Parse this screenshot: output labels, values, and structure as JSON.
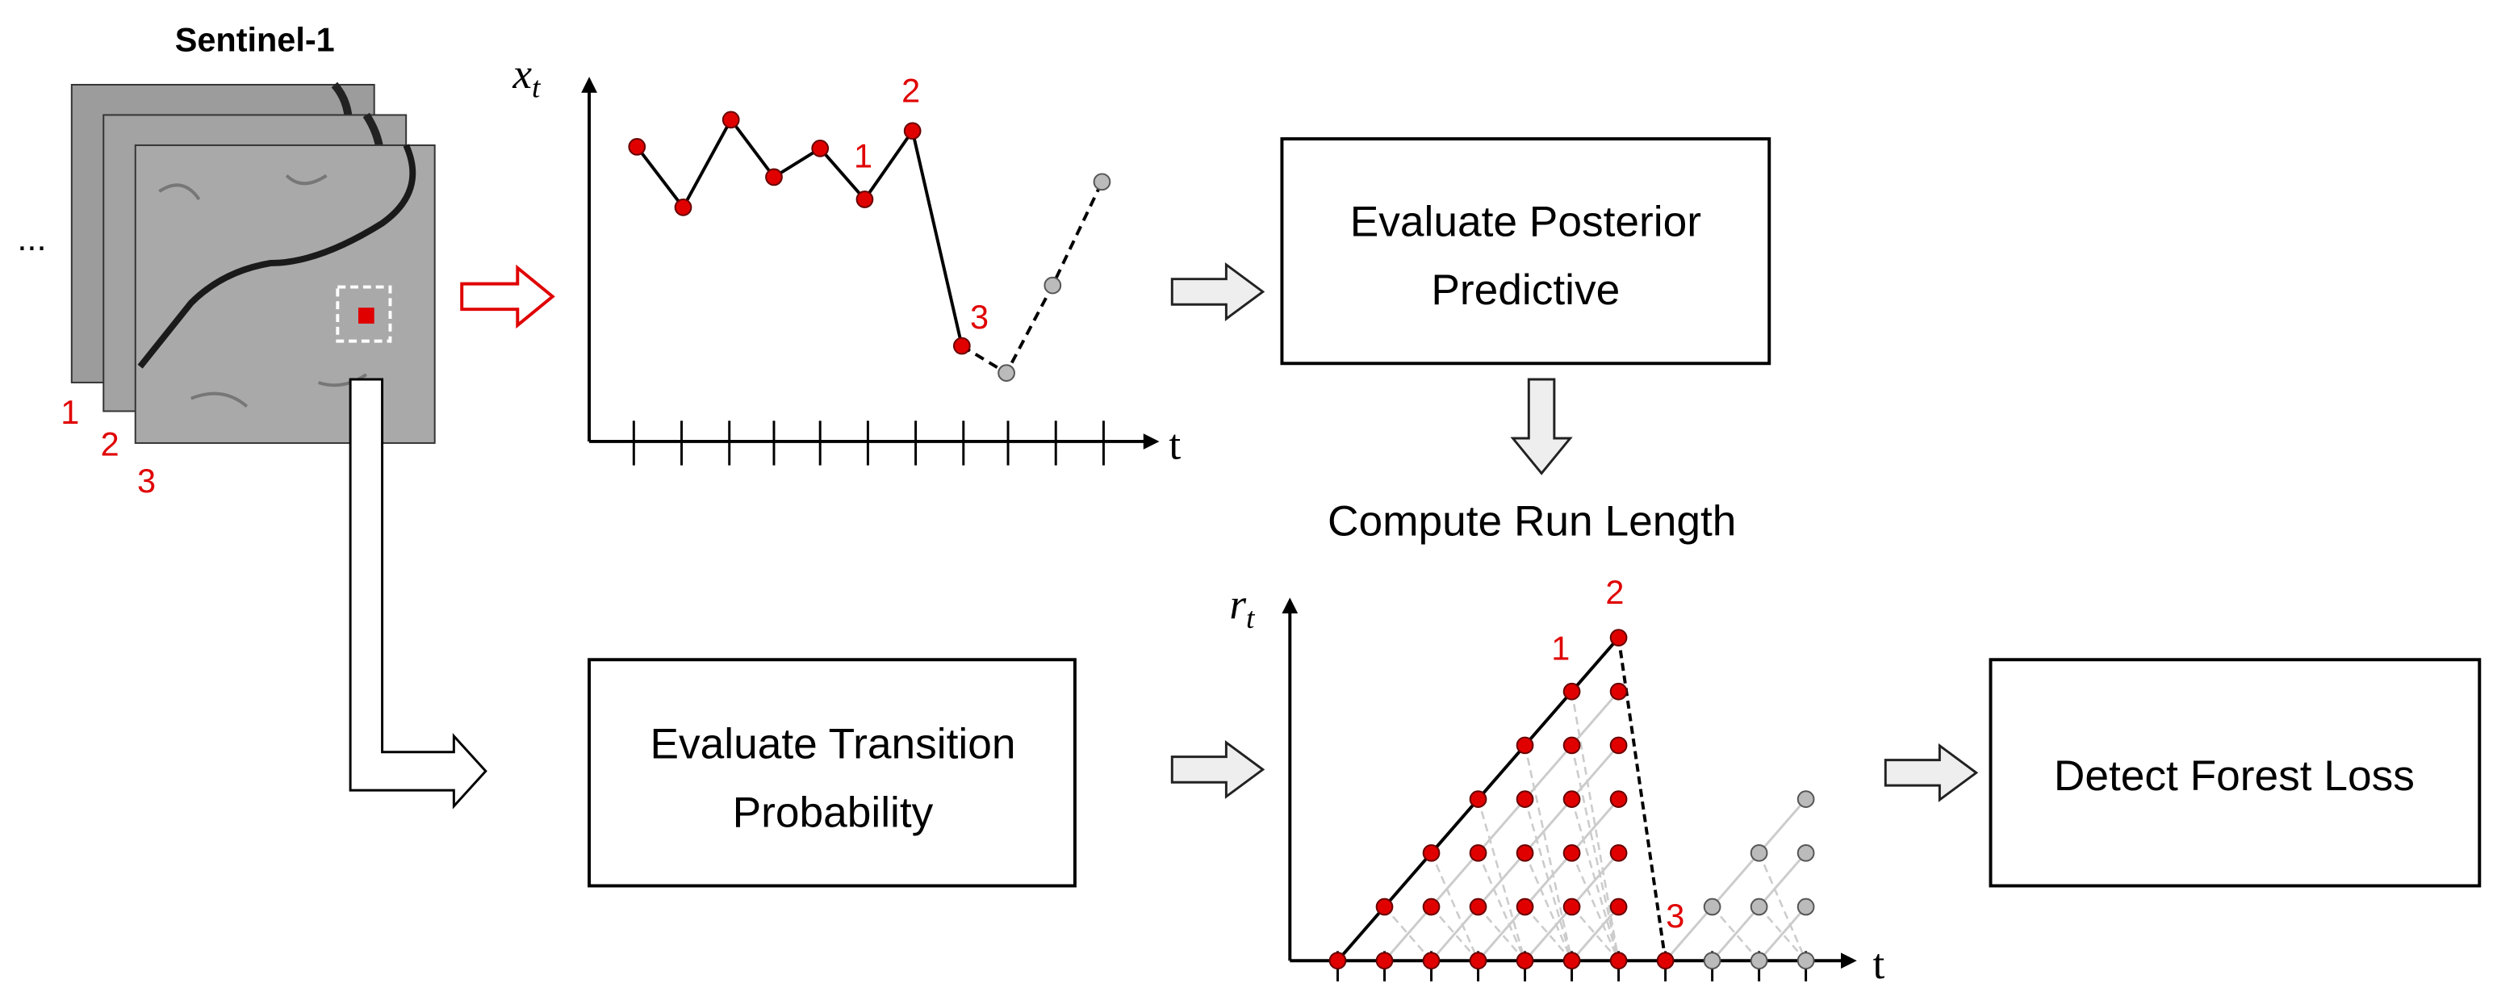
{
  "satellite": {
    "title": "Sentinel-1",
    "ellipsis": "...",
    "frame_labels": [
      "1",
      "2",
      "3"
    ]
  },
  "series_plot": {
    "y_symbol": "x",
    "y_subscript": "t",
    "x_label": "t",
    "annotations": [
      "2",
      "1",
      "3"
    ]
  },
  "posterior_box": [
    "Evaluate Posterior",
    "Predictive"
  ],
  "run_length_caption": "Compute Run Length",
  "run_length_plot": {
    "y_symbol": "r",
    "y_subscript": "t",
    "x_label": "t",
    "annotations": [
      "1",
      "2",
      "3"
    ]
  },
  "transition_box": [
    "Evaluate Transition",
    "Probability"
  ],
  "detect_box": "Detect Forest Loss"
}
